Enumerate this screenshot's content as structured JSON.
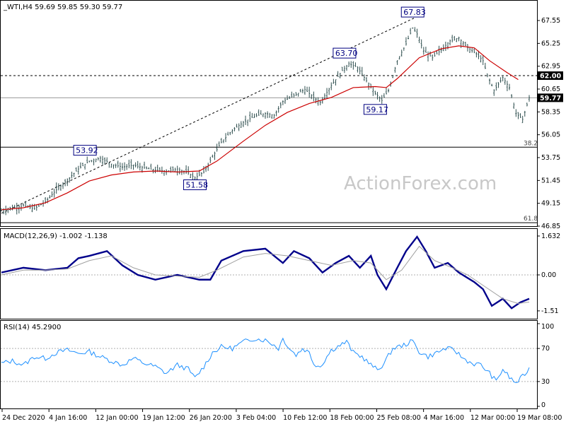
{
  "header": {
    "symbol_line": "_WTI,H4  59.69 59.85 59.30 59.77"
  },
  "watermark": "ActionForex.com",
  "colors": {
    "candle": "#2f4f4f",
    "ema": "#cc0000",
    "macd": "#00008b",
    "signal": "#a0a0a0",
    "rsi": "#1e90ff",
    "grid_line": "#000000",
    "tag_bg": "#000000",
    "annotation": "#000080"
  },
  "chart_data": [
    {
      "type": "candlestick",
      "pane": "price",
      "title": "_WTI,H4  59.69 59.85 59.30 59.77",
      "ylim": [
        46.85,
        68.05
      ],
      "y_ticks": [
        "67.55",
        "65.25",
        "62.95",
        "60.65",
        "58.35",
        "56.05",
        "53.75",
        "51.45",
        "49.15",
        "46.85"
      ],
      "x_ticks": [
        "24 Dec 2020",
        "4 Jan 16:00",
        "12 Jan 00:00",
        "19 Jan 12:00",
        "26 Jan 20:00",
        "3 Feb 04:00",
        "10 Feb 12:00",
        "18 Feb 00:00",
        "25 Feb 08:00",
        "4 Mar 16:00",
        "12 Mar 00:00",
        "19 Mar 08:00"
      ],
      "price_path": [
        [
          0,
          48.4
        ],
        [
          5,
          48.7
        ],
        [
          10,
          48.9
        ],
        [
          15,
          48.6
        ],
        [
          20,
          49.3
        ],
        [
          25,
          50.5
        ],
        [
          30,
          51.5
        ],
        [
          35,
          52.6
        ],
        [
          40,
          53.4
        ],
        [
          45,
          53.7
        ],
        [
          50,
          53.1
        ],
        [
          55,
          52.8
        ],
        [
          60,
          53.0
        ],
        [
          65,
          52.7
        ],
        [
          70,
          52.5
        ],
        [
          75,
          52.4
        ],
        [
          80,
          52.6
        ],
        [
          85,
          52.2
        ],
        [
          88,
          51.7
        ],
        [
          92,
          52.3
        ],
        [
          96,
          53.8
        ],
        [
          100,
          55.3
        ],
        [
          105,
          56.5
        ],
        [
          110,
          57.3
        ],
        [
          115,
          57.9
        ],
        [
          120,
          58.2
        ],
        [
          124,
          58.0
        ],
        [
          128,
          59.4
        ],
        [
          133,
          60.0
        ],
        [
          138,
          60.6
        ],
        [
          142,
          59.8
        ],
        [
          145,
          59.3
        ],
        [
          150,
          61.0
        ],
        [
          155,
          62.5
        ],
        [
          158,
          63.2
        ],
        [
          162,
          62.8
        ],
        [
          166,
          61.5
        ],
        [
          170,
          60.2
        ],
        [
          173,
          59.5
        ],
        [
          176,
          60.5
        ],
        [
          180,
          63.5
        ],
        [
          184,
          65.2
        ],
        [
          187,
          66.8
        ],
        [
          189,
          66.2
        ],
        [
          192,
          64.5
        ],
        [
          196,
          63.8
        ],
        [
          200,
          64.6
        ],
        [
          204,
          65.5
        ],
        [
          208,
          65.8
        ],
        [
          212,
          64.8
        ],
        [
          216,
          64.2
        ],
        [
          219,
          63.5
        ],
        [
          221,
          62.0
        ],
        [
          224,
          60.5
        ],
        [
          228,
          61.8
        ],
        [
          231,
          60.8
        ],
        [
          234,
          58.2
        ],
        [
          237,
          57.6
        ],
        [
          240,
          59.77
        ]
      ],
      "ema": [
        [
          0,
          48.5
        ],
        [
          10,
          48.7
        ],
        [
          20,
          49.2
        ],
        [
          30,
          50.2
        ],
        [
          40,
          51.4
        ],
        [
          50,
          52.0
        ],
        [
          60,
          52.3
        ],
        [
          70,
          52.4
        ],
        [
          80,
          52.3
        ],
        [
          90,
          52.4
        ],
        [
          98,
          53.4
        ],
        [
          110,
          55.4
        ],
        [
          120,
          57.0
        ],
        [
          130,
          58.3
        ],
        [
          140,
          59.2
        ],
        [
          150,
          59.8
        ],
        [
          160,
          60.8
        ],
        [
          170,
          60.9
        ],
        [
          175,
          60.8
        ],
        [
          180,
          61.7
        ],
        [
          190,
          63.8
        ],
        [
          200,
          64.7
        ],
        [
          208,
          65.0
        ],
        [
          215,
          64.8
        ],
        [
          222,
          63.5
        ],
        [
          230,
          62.3
        ],
        [
          235,
          61.6
        ]
      ],
      "horizontal_lines": [
        {
          "value": 62.0,
          "label": "62.00",
          "style": "dashed"
        },
        {
          "value": 59.77,
          "label": "59.77",
          "style": "solid-light"
        },
        {
          "value": 54.8,
          "label": "38.2",
          "style": "solid"
        },
        {
          "value": 47.2,
          "label": "61.8",
          "style": "solid"
        }
      ],
      "trendline": {
        "from": [
          0,
          48.15
        ],
        "to": [
          188,
          67.83
        ],
        "style": "dashed"
      },
      "annotations": [
        {
          "label": "67.83",
          "at": [
            187,
            67.83
          ]
        },
        {
          "label": "63.70",
          "at": [
            156,
            63.7
          ]
        },
        {
          "label": "53.92",
          "at": [
            38,
            53.92
          ]
        },
        {
          "label": "51.58",
          "at": [
            88,
            51.58
          ]
        },
        {
          "label": "59.17",
          "at": [
            170,
            59.17
          ]
        }
      ]
    },
    {
      "type": "line",
      "pane": "macd",
      "title": "MACD(12,26,9) -1.002 -1.138",
      "ylim": [
        -1.75,
        1.75
      ],
      "y_ticks": [
        "1.632",
        "0.00",
        "-1.51"
      ],
      "series": [
        {
          "style": "bold",
          "values": [
            [
              0,
              0.1
            ],
            [
              10,
              0.3
            ],
            [
              20,
              0.2
            ],
            [
              30,
              0.3
            ],
            [
              35,
              0.7
            ],
            [
              40,
              0.8
            ],
            [
              48,
              1.0
            ],
            [
              55,
              0.4
            ],
            [
              62,
              0.0
            ],
            [
              70,
              -0.2
            ],
            [
              80,
              0.0
            ],
            [
              90,
              -0.2
            ],
            [
              95,
              -0.2
            ],
            [
              100,
              0.6
            ],
            [
              110,
              1.0
            ],
            [
              120,
              1.1
            ],
            [
              128,
              0.5
            ],
            [
              133,
              1.0
            ],
            [
              140,
              0.7
            ],
            [
              146,
              0.1
            ],
            [
              152,
              0.5
            ],
            [
              158,
              0.8
            ],
            [
              163,
              0.3
            ],
            [
              168,
              0.8
            ],
            [
              171,
              0.0
            ],
            [
              175,
              -0.6
            ],
            [
              180,
              0.3
            ],
            [
              184,
              1.0
            ],
            [
              189,
              1.6
            ],
            [
              193,
              1.0
            ],
            [
              197,
              0.3
            ],
            [
              203,
              0.5
            ],
            [
              208,
              0.1
            ],
            [
              215,
              -0.3
            ],
            [
              219,
              -0.6
            ],
            [
              223,
              -1.3
            ],
            [
              228,
              -1.0
            ],
            [
              232,
              -1.4
            ],
            [
              236,
              -1.15
            ],
            [
              240,
              -1.0
            ]
          ]
        },
        {
          "style": "thin",
          "values": [
            [
              0,
              0.0
            ],
            [
              10,
              0.2
            ],
            [
              20,
              0.2
            ],
            [
              30,
              0.25
            ],
            [
              40,
              0.6
            ],
            [
              50,
              0.8
            ],
            [
              60,
              0.3
            ],
            [
              70,
              0.0
            ],
            [
              80,
              -0.05
            ],
            [
              90,
              -0.1
            ],
            [
              98,
              0.2
            ],
            [
              110,
              0.75
            ],
            [
              120,
              0.9
            ],
            [
              130,
              0.8
            ],
            [
              140,
              0.6
            ],
            [
              150,
              0.4
            ],
            [
              160,
              0.6
            ],
            [
              168,
              0.5
            ],
            [
              175,
              -0.2
            ],
            [
              182,
              0.2
            ],
            [
              190,
              1.2
            ],
            [
              197,
              0.6
            ],
            [
              205,
              0.3
            ],
            [
              212,
              0.0
            ],
            [
              220,
              -0.5
            ],
            [
              228,
              -1.0
            ],
            [
              235,
              -1.2
            ],
            [
              240,
              -1.138
            ]
          ]
        }
      ]
    },
    {
      "type": "line",
      "pane": "rsi",
      "title": "RSI(14) 45.2900",
      "ylim": [
        0,
        100
      ],
      "y_ticks": [
        "100",
        "70",
        "30",
        "0"
      ],
      "levels": [
        70,
        30
      ],
      "values": [
        [
          0,
          52
        ],
        [
          5,
          55
        ],
        [
          10,
          50
        ],
        [
          15,
          60
        ],
        [
          20,
          58
        ],
        [
          25,
          65
        ],
        [
          30,
          68
        ],
        [
          35,
          64
        ],
        [
          40,
          66
        ],
        [
          45,
          60
        ],
        [
          50,
          55
        ],
        [
          55,
          50
        ],
        [
          60,
          58
        ],
        [
          65,
          52
        ],
        [
          70,
          48
        ],
        [
          75,
          40
        ],
        [
          80,
          50
        ],
        [
          85,
          45
        ],
        [
          88,
          34
        ],
        [
          92,
          48
        ],
        [
          96,
          65
        ],
        [
          100,
          72
        ],
        [
          105,
          70
        ],
        [
          110,
          78
        ],
        [
          115,
          82
        ],
        [
          120,
          80
        ],
        [
          123,
          76
        ],
        [
          126,
          70
        ],
        [
          128,
          82
        ],
        [
          131,
          70
        ],
        [
          134,
          62
        ],
        [
          137,
          70
        ],
        [
          140,
          65
        ],
        [
          142,
          52
        ],
        [
          145,
          48
        ],
        [
          150,
          68
        ],
        [
          154,
          74
        ],
        [
          157,
          78
        ],
        [
          160,
          65
        ],
        [
          164,
          60
        ],
        [
          168,
          50
        ],
        [
          171,
          44
        ],
        [
          174,
          52
        ],
        [
          178,
          70
        ],
        [
          183,
          74
        ],
        [
          187,
          79
        ],
        [
          190,
          66
        ],
        [
          194,
          60
        ],
        [
          198,
          65
        ],
        [
          202,
          70
        ],
        [
          206,
          68
        ],
        [
          210,
          58
        ],
        [
          214,
          52
        ],
        [
          218,
          50
        ],
        [
          222,
          40
        ],
        [
          225,
          30
        ],
        [
          228,
          45
        ],
        [
          231,
          35
        ],
        [
          234,
          28
        ],
        [
          237,
          36
        ],
        [
          240,
          45.29
        ]
      ]
    }
  ]
}
